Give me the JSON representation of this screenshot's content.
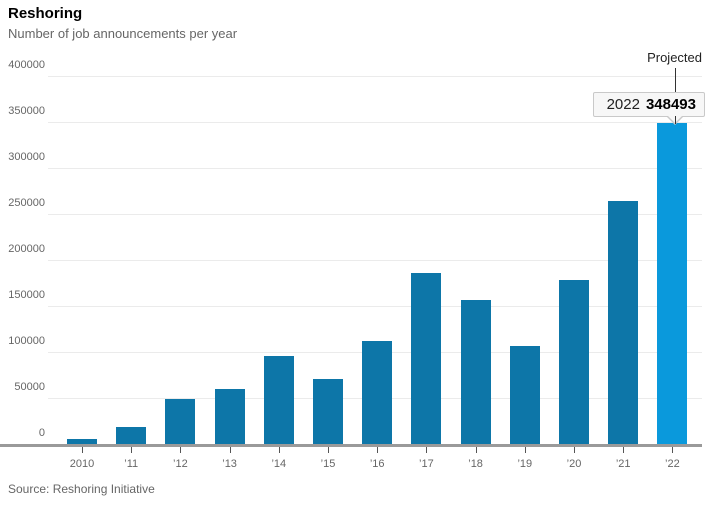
{
  "header": {
    "title": "Reshoring",
    "subtitle": "Number of job announcements per year"
  },
  "chart_data": {
    "type": "bar",
    "title": "Reshoring",
    "subtitle": "Number of job announcements per year",
    "categories": [
      "2010",
      "’11",
      "’12",
      "’13",
      "’14",
      "’15",
      "’16",
      "’17",
      "’18",
      "’19",
      "’20",
      "’21",
      "’22"
    ],
    "values": [
      5000,
      18000,
      49000,
      60000,
      96000,
      71000,
      112000,
      186000,
      156000,
      106000,
      178000,
      264000,
      348493
    ],
    "xlabel": "",
    "ylabel": "",
    "ylim": [
      0,
      400000
    ],
    "yticks": [
      0,
      50000,
      100000,
      150000,
      200000,
      250000,
      300000,
      350000,
      400000
    ],
    "grid": "horizontal",
    "legend": "none",
    "bar_color": "#0d76a8",
    "projected_bar_color": "#0a99dc",
    "projected_index": 12,
    "annotations": {
      "projected_label": "Projected",
      "tooltip_year": "2022",
      "tooltip_value": "348493"
    }
  },
  "tooltip": {
    "year": "2022",
    "value": "348493"
  },
  "projected_label": "Projected",
  "source": "Source: Reshoring Initiative",
  "colors": {
    "bar": "#0d76a8",
    "projected_bar": "#0a99dc",
    "gridline": "#ebebeb",
    "axis": "#9a9a9a",
    "text_muted": "#666666"
  }
}
